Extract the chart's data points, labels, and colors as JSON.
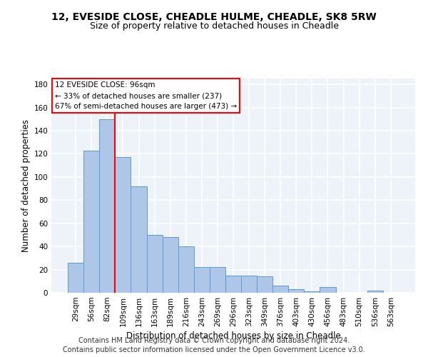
{
  "title1": "12, EVESIDE CLOSE, CHEADLE HULME, CHEADLE, SK8 5RW",
  "title2": "Size of property relative to detached houses in Cheadle",
  "xlabel": "Distribution of detached houses by size in Cheadle",
  "ylabel": "Number of detached properties",
  "categories": [
    "29sqm",
    "56sqm",
    "82sqm",
    "109sqm",
    "136sqm",
    "163sqm",
    "189sqm",
    "216sqm",
    "243sqm",
    "269sqm",
    "296sqm",
    "323sqm",
    "349sqm",
    "376sqm",
    "403sqm",
    "430sqm",
    "456sqm",
    "483sqm",
    "510sqm",
    "536sqm",
    "563sqm"
  ],
  "values": [
    26,
    123,
    150,
    117,
    92,
    50,
    48,
    40,
    22,
    22,
    15,
    15,
    14,
    6,
    3,
    1,
    5,
    0,
    0,
    2,
    0
  ],
  "bar_color": "#aec6e8",
  "bar_edge_color": "#5b9bd5",
  "bar_width": 1.0,
  "reference_line_color": "red",
  "reference_line_x": 2.5,
  "annotation_line1": "12 EVESIDE CLOSE: 96sqm",
  "annotation_line2": "← 33% of detached houses are smaller (237)",
  "annotation_line3": "67% of semi-detached houses are larger (473) →",
  "ylim": [
    0,
    185
  ],
  "yticks": [
    0,
    20,
    40,
    60,
    80,
    100,
    120,
    140,
    160,
    180
  ],
  "footer_line1": "Contains HM Land Registry data © Crown copyright and database right 2024.",
  "footer_line2": "Contains public sector information licensed under the Open Government Licence v3.0.",
  "bg_color": "#eef2f9",
  "grid_color": "#ffffff",
  "title1_fontsize": 10,
  "title2_fontsize": 9,
  "xlabel_fontsize": 8.5,
  "ylabel_fontsize": 8.5,
  "tick_fontsize": 7.5,
  "annotation_fontsize": 7.5,
  "footer_fontsize": 7
}
